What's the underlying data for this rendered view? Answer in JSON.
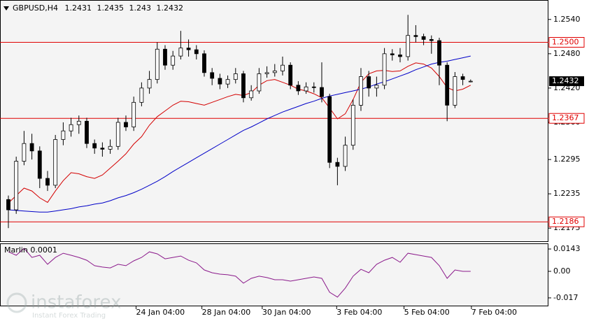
{
  "chart_data": [
    {
      "type": "candlestick",
      "title": "GBPUSD,H4",
      "open": [
        1.2225,
        1.2207,
        1.2292,
        1.2323,
        1.231,
        1.2262,
        1.225,
        1.233,
        1.2345,
        1.2356,
        1.2362,
        1.2323,
        1.2315,
        1.2313,
        1.2318,
        1.236,
        1.2352,
        1.2395,
        1.242,
        1.2435,
        1.2488,
        1.246,
        1.2476,
        1.249,
        1.2487,
        1.248,
        1.2447,
        1.2437,
        1.2427,
        1.2435,
        1.2445,
        1.2403,
        1.2415,
        1.2445,
        1.2447,
        1.245,
        1.246,
        1.2425,
        1.2415,
        1.2422,
        1.2421,
        1.2405,
        1.229,
        1.2283,
        1.232,
        1.239,
        1.244,
        1.242,
        1.2425,
        1.248,
        1.2478,
        1.2475,
        1.2512,
        1.251,
        1.2505,
        1.2503,
        1.246,
        1.239,
        1.244,
        1.2431
      ],
      "high": [
        1.2232,
        1.23,
        1.2345,
        1.234,
        1.2318,
        1.2275,
        1.2338,
        1.236,
        1.2368,
        1.2372,
        1.2368,
        1.233,
        1.2325,
        1.233,
        1.2368,
        1.2372,
        1.2405,
        1.243,
        1.245,
        1.25,
        1.2495,
        1.2485,
        1.252,
        1.2505,
        1.2495,
        1.2486,
        1.2455,
        1.2445,
        1.2442,
        1.2455,
        1.245,
        1.2425,
        1.2455,
        1.2458,
        1.2462,
        1.2475,
        1.2465,
        1.2432,
        1.243,
        1.243,
        1.2465,
        1.241,
        1.2298,
        1.2335,
        1.24,
        1.2455,
        1.245,
        1.244,
        1.249,
        1.2488,
        1.249,
        1.2548,
        1.253,
        1.2515,
        1.2512,
        1.2508,
        1.2465,
        1.2448,
        1.2445,
        1.2435
      ],
      "low": [
        1.2175,
        1.22,
        1.2285,
        1.2295,
        1.2245,
        1.224,
        1.2245,
        1.232,
        1.2335,
        1.234,
        1.2315,
        1.2305,
        1.23,
        1.2305,
        1.2312,
        1.2345,
        1.2345,
        1.2388,
        1.241,
        1.2428,
        1.2452,
        1.2452,
        1.247,
        1.2475,
        1.247,
        1.244,
        1.2425,
        1.2418,
        1.242,
        1.2428,
        1.2395,
        1.2398,
        1.241,
        1.2438,
        1.244,
        1.2442,
        1.2418,
        1.2408,
        1.241,
        1.2412,
        1.2395,
        1.228,
        1.225,
        1.2275,
        1.2312,
        1.238,
        1.2405,
        1.2405,
        1.2418,
        1.2468,
        1.2465,
        1.2468,
        1.25,
        1.2495,
        1.248,
        1.2425,
        1.2362,
        1.2385,
        1.2425,
        1.243
      ],
      "close": [
        1.2207,
        1.2292,
        1.2323,
        1.231,
        1.2262,
        1.225,
        1.233,
        1.2345,
        1.2356,
        1.2362,
        1.2323,
        1.2315,
        1.2313,
        1.2318,
        1.236,
        1.2352,
        1.2395,
        1.242,
        1.2435,
        1.2488,
        1.246,
        1.2476,
        1.249,
        1.2487,
        1.248,
        1.2447,
        1.2437,
        1.2427,
        1.2435,
        1.2445,
        1.2403,
        1.2415,
        1.2445,
        1.2447,
        1.245,
        1.246,
        1.2425,
        1.2415,
        1.2422,
        1.2421,
        1.2405,
        1.229,
        1.2283,
        1.232,
        1.239,
        1.244,
        1.242,
        1.2425,
        1.248,
        1.2478,
        1.2475,
        1.2512,
        1.251,
        1.2505,
        1.2503,
        1.246,
        1.239,
        1.244,
        1.2435,
        1.2432
      ],
      "series": [
        {
          "color": "#d40000",
          "values": [
            1.2219,
            1.2232,
            1.2245,
            1.224,
            1.2228,
            1.222,
            1.224,
            1.2258,
            1.2272,
            1.227,
            1.2265,
            1.2262,
            1.2268,
            1.228,
            1.2292,
            1.2305,
            1.2322,
            1.2335,
            1.2355,
            1.237,
            1.238,
            1.239,
            1.2397,
            1.2396,
            1.2393,
            1.239,
            1.2395,
            1.24,
            1.2405,
            1.2409,
            1.2407,
            1.2412,
            1.2425,
            1.2433,
            1.2435,
            1.243,
            1.2425,
            1.2418,
            1.2415,
            1.241,
            1.2403,
            1.2385,
            1.2366,
            1.2375,
            1.24,
            1.243,
            1.2445,
            1.245,
            1.2451,
            1.2449,
            1.245,
            1.2458,
            1.2464,
            1.2462,
            1.2455,
            1.244,
            1.2421,
            1.2415,
            1.2418,
            1.2425
          ]
        },
        {
          "color": "#0000c8",
          "values": [
            1.2207,
            1.2206,
            1.2205,
            1.2204,
            1.2203,
            1.2203,
            1.2205,
            1.2207,
            1.2209,
            1.2212,
            1.2214,
            1.2217,
            1.2219,
            1.2223,
            1.2228,
            1.2232,
            1.2237,
            1.2243,
            1.225,
            1.2257,
            1.2265,
            1.2274,
            1.2282,
            1.229,
            1.2298,
            1.2306,
            1.2314,
            1.2322,
            1.233,
            1.2338,
            1.2346,
            1.2352,
            1.2359,
            1.2366,
            1.2372,
            1.2378,
            1.2383,
            1.2388,
            1.2393,
            1.2397,
            1.2402,
            1.2406,
            1.2409,
            1.2412,
            1.2415,
            1.2418,
            1.2422,
            1.2427,
            1.2431,
            1.2436,
            1.2441,
            1.2446,
            1.2452,
            1.2457,
            1.2462,
            1.2465,
            1.2467,
            1.247,
            1.2473,
            1.2476
          ]
        }
      ],
      "levels": [
        {
          "value": 1.25,
          "label": "1.2500"
        },
        1.2367,
        1.2186
      ],
      "level_color": "#e00000",
      "ylim": [
        1.2152,
        1.2574
      ],
      "yticks": [
        {
          "value": 1.254,
          "label": "1.2540"
        },
        {
          "value": 1.248,
          "label": "1.2480"
        },
        {
          "value": 1.242,
          "label": "1.2420"
        },
        {
          "value": 1.236,
          "label": "1.2360"
        },
        1.2295,
        1.2235,
        1.2175
      ],
      "xlim": [
        -1.07,
        68.93
      ],
      "xticks": [
        {
          "value": 16.3,
          "label": "24 Jan 04:00"
        },
        {
          "value": 24.7,
          "label": "28 Jan 04:00"
        },
        {
          "value": 32.4,
          "label": "30 Jan 04:00"
        },
        {
          "value": 41.9,
          "label": "3 Feb 04:00"
        },
        {
          "value": 50.5,
          "label": "5 Feb 04:00"
        },
        {
          "value": 59.1,
          "label": "7 Feb 04:00"
        }
      ]
    },
    {
      "type": "line",
      "title": "Marlin 0.0001",
      "color": "#8b1a8b",
      "values": [
        0.0125,
        0.0103,
        0.0147,
        0.0089,
        0.0103,
        0.0045,
        0.0089,
        0.0116,
        0.0103,
        0.0089,
        0.0071,
        0.0036,
        0.0027,
        0.0022,
        0.0045,
        0.0036,
        0.0067,
        0.0089,
        0.0125,
        0.0112,
        0.008,
        0.0089,
        0.0098,
        0.0071,
        0.0054,
        0.0009,
        -0.0009,
        -0.0018,
        -0.0022,
        -0.0031,
        -0.0076,
        -0.0045,
        -0.0031,
        -0.004,
        -0.0054,
        -0.0054,
        -0.0063,
        -0.0054,
        -0.0045,
        -0.0036,
        -0.0045,
        -0.0134,
        -0.0165,
        -0.0107,
        -0.0031,
        0.0013,
        -0.0009,
        0.0045,
        0.0071,
        0.0089,
        0.0058,
        0.0116,
        0.0107,
        0.0098,
        0.0089,
        0.0036,
        -0.0045,
        0.0009,
        0,
        0
      ],
      "ylim": [
        -0.0224,
        0.0179
      ],
      "yticks": [
        0.0143,
        {
          "value": 0,
          "label": "0.00"
        },
        -0.017
      ]
    }
  ],
  "watermark": {
    "name": "instaforex",
    "tagline": "Instant Forex Trading"
  }
}
